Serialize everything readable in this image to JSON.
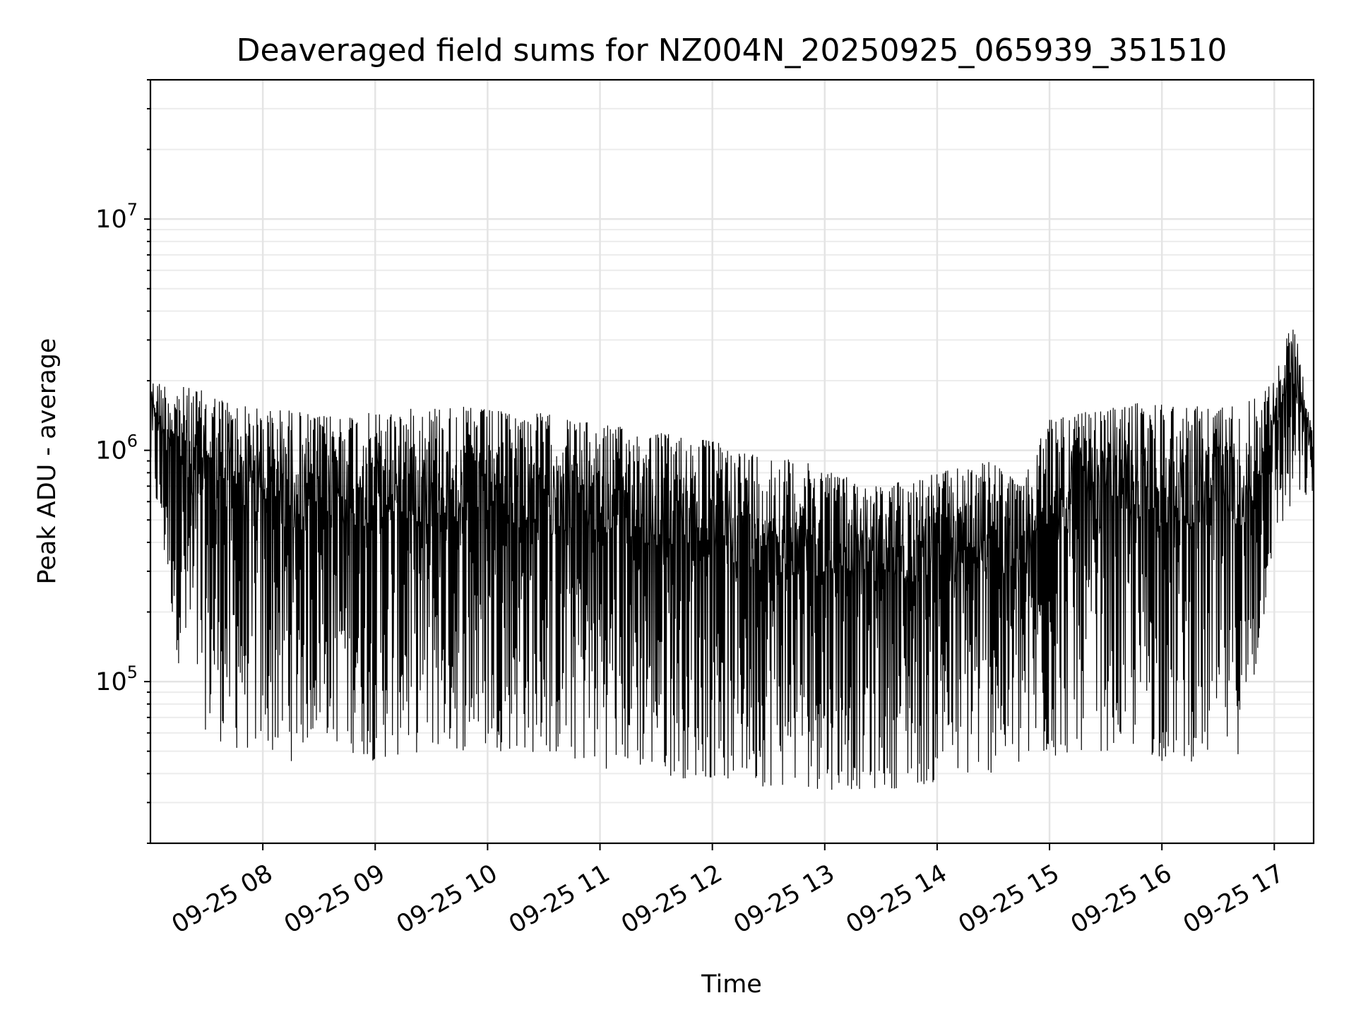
{
  "chart_data": {
    "type": "line",
    "title": "Deaveraged field sums for NZ004N_20250925_065939_351510",
    "xlabel": "Time",
    "ylabel": "Peak ADU - average",
    "yscale": "log",
    "ylim": [
      20000,
      40000000
    ],
    "xlim": [
      "2025-09-25 07:00",
      "2025-09-25 17:21"
    ],
    "grid": true,
    "legend": "none",
    "x_ticks": [
      {
        "value": "2025-09-25 08:00",
        "label": "09-25 08"
      },
      {
        "value": "2025-09-25 09:00",
        "label": "09-25 09"
      },
      {
        "value": "2025-09-25 10:00",
        "label": "09-25 10"
      },
      {
        "value": "2025-09-25 11:00",
        "label": "09-25 11"
      },
      {
        "value": "2025-09-25 12:00",
        "label": "09-25 12"
      },
      {
        "value": "2025-09-25 13:00",
        "label": "09-25 13"
      },
      {
        "value": "2025-09-25 14:00",
        "label": "09-25 14"
      },
      {
        "value": "2025-09-25 15:00",
        "label": "09-25 15"
      },
      {
        "value": "2025-09-25 16:00",
        "label": "09-25 16"
      },
      {
        "value": "2025-09-25 17:00",
        "label": "09-25 17"
      }
    ],
    "y_ticks": [
      {
        "value": 100000,
        "base": "10",
        "exp": "5"
      },
      {
        "value": 1000000,
        "base": "10",
        "exp": "6"
      },
      {
        "value": 10000000,
        "base": "10",
        "exp": "7"
      }
    ],
    "color": "#000000",
    "series": [
      {
        "envelope": [
          {
            "x": "2025-09-25 07:00",
            "low": 800000,
            "high": 2000000
          },
          {
            "x": "2025-09-25 07:15",
            "low": 120000,
            "high": 1900000
          },
          {
            "x": "2025-09-25 07:30",
            "low": 60000,
            "high": 1800000
          },
          {
            "x": "2025-09-25 07:45",
            "low": 50000,
            "high": 1600000
          },
          {
            "x": "2025-09-25 08:00",
            "low": 50000,
            "high": 1500000
          },
          {
            "x": "2025-09-25 08:15",
            "low": 45000,
            "high": 1500000
          },
          {
            "x": "2025-09-25 08:30",
            "low": 60000,
            "high": 1400000
          },
          {
            "x": "2025-09-25 08:45",
            "low": 50000,
            "high": 1450000
          },
          {
            "x": "2025-09-25 09:00",
            "low": 45000,
            "high": 1450000
          },
          {
            "x": "2025-09-25 09:15",
            "low": 48000,
            "high": 1500000
          },
          {
            "x": "2025-09-25 09:30",
            "low": 50000,
            "high": 1550000
          },
          {
            "x": "2025-09-25 09:45",
            "low": 50000,
            "high": 1550000
          },
          {
            "x": "2025-09-25 10:00",
            "low": 50000,
            "high": 1500000
          },
          {
            "x": "2025-09-25 10:15",
            "low": 50000,
            "high": 1450000
          },
          {
            "x": "2025-09-25 10:30",
            "low": 48000,
            "high": 1450000
          },
          {
            "x": "2025-09-25 10:45",
            "low": 45000,
            "high": 1350000
          },
          {
            "x": "2025-09-25 11:00",
            "low": 42000,
            "high": 1300000
          },
          {
            "x": "2025-09-25 11:15",
            "low": 42000,
            "high": 1250000
          },
          {
            "x": "2025-09-25 11:30",
            "low": 40000,
            "high": 1200000
          },
          {
            "x": "2025-09-25 11:45",
            "low": 38000,
            "high": 1150000
          },
          {
            "x": "2025-09-25 12:00",
            "low": 38000,
            "high": 1100000
          },
          {
            "x": "2025-09-25 12:15",
            "low": 36000,
            "high": 1000000
          },
          {
            "x": "2025-09-25 12:30",
            "low": 35000,
            "high": 950000
          },
          {
            "x": "2025-09-25 12:45",
            "low": 35000,
            "high": 900000
          },
          {
            "x": "2025-09-25 13:00",
            "low": 34000,
            "high": 850000
          },
          {
            "x": "2025-09-25 13:15",
            "low": 34000,
            "high": 750000
          },
          {
            "x": "2025-09-25 13:30",
            "low": 34000,
            "high": 700000
          },
          {
            "x": "2025-09-25 13:45",
            "low": 35000,
            "high": 750000
          },
          {
            "x": "2025-09-25 14:00",
            "low": 36000,
            "high": 800000
          },
          {
            "x": "2025-09-25 14:15",
            "low": 38000,
            "high": 850000
          },
          {
            "x": "2025-09-25 14:30",
            "low": 40000,
            "high": 900000
          },
          {
            "x": "2025-09-25 14:45",
            "low": 40000,
            "high": 700000
          },
          {
            "x": "2025-09-25 15:00",
            "low": 45000,
            "high": 1400000
          },
          {
            "x": "2025-09-25 15:15",
            "low": 50000,
            "high": 1450000
          },
          {
            "x": "2025-09-25 15:30",
            "low": 50000,
            "high": 1500000
          },
          {
            "x": "2025-09-25 15:45",
            "low": 50000,
            "high": 1600000
          },
          {
            "x": "2025-09-25 16:00",
            "low": 45000,
            "high": 1600000
          },
          {
            "x": "2025-09-25 16:15",
            "low": 45000,
            "high": 1550000
          },
          {
            "x": "2025-09-25 16:30",
            "low": 45000,
            "high": 1550000
          },
          {
            "x": "2025-09-25 16:45",
            "low": 50000,
            "high": 1600000
          },
          {
            "x": "2025-09-25 17:00",
            "low": 400000,
            "high": 2000000
          },
          {
            "x": "2025-09-25 17:10",
            "low": 550000,
            "high": 3800000
          },
          {
            "x": "2025-09-25 17:21",
            "low": 650000,
            "high": 1100000
          }
        ]
      }
    ]
  }
}
